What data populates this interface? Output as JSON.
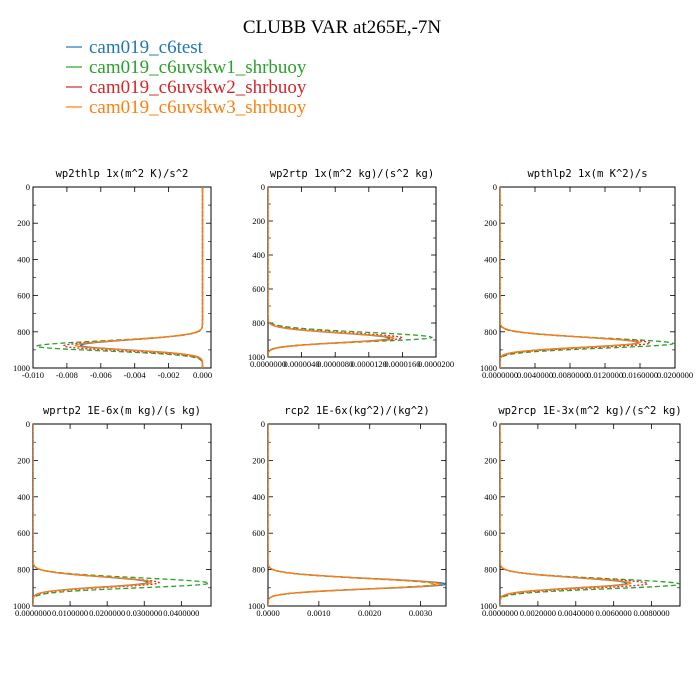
{
  "title": "CLUBB VAR at265E,-7N",
  "legend": [
    {
      "label": "cam019_c6test",
      "color": "#1f77b4",
      "dash": "solid"
    },
    {
      "label": "cam019_c6uvskw1_shrbuoy",
      "color": "#2ca02c",
      "dash": "dash"
    },
    {
      "label": "cam019_c6uvskw2_shrbuoy",
      "color": "#d62728",
      "dash": "dot"
    },
    {
      "label": "cam019_c6uvskw3_shrbuoy",
      "color": "#ff7f0e",
      "dash": "solid"
    }
  ],
  "chart_data": [
    {
      "type": "line",
      "title": "wp2thlp  1x(m^2 K)/s^2",
      "xlim": [
        -0.01,
        0.0005
      ],
      "ylim": [
        1000,
        0
      ],
      "xticks": [
        -0.01,
        -0.008,
        -0.006,
        -0.004,
        -0.002,
        0.0
      ],
      "xtick_labels": [
        "-0.010",
        "-0.008",
        "-0.006",
        "-0.004",
        "-0.002",
        "0.000"
      ],
      "yticks": [
        0,
        200,
        400,
        600,
        800,
        1000
      ],
      "ytick_labels": [
        "0",
        "200",
        "400",
        "600",
        "800",
        "1000"
      ],
      "series": [
        {
          "legend_index": 0,
          "peak_level": 875,
          "peak_value": -0.0072,
          "baseline": 0.0
        },
        {
          "legend_index": 1,
          "peak_level": 880,
          "peak_value": -0.0098,
          "baseline": 0.0
        },
        {
          "legend_index": 2,
          "peak_level": 878,
          "peak_value": -0.0082,
          "baseline": 0.0
        },
        {
          "legend_index": 3,
          "peak_level": 875,
          "peak_value": -0.0075,
          "baseline": 0.0
        }
      ]
    },
    {
      "type": "line",
      "title": "wp2rtp  1x(m^2 kg)/(s^2 kg)",
      "xlim": [
        0.0,
        2e-05
      ],
      "ylim": [
        1000,
        0
      ],
      "xticks": [
        0.0,
        4e-06,
        8e-06,
        1.2e-05,
        1.6e-05,
        2e-05
      ],
      "xtick_labels": [
        "0.0000000",
        "0.0000040",
        "0.0000080",
        "0.0000120",
        "0.0000160",
        "0.0000200"
      ],
      "yticks": [
        0,
        200,
        400,
        600,
        800,
        1000
      ],
      "ytick_labels": [
        "0",
        "200",
        "400",
        "600",
        "800",
        "1000"
      ],
      "series": [
        {
          "legend_index": 0,
          "peak_level": 890,
          "peak_value": 1.45e-05,
          "baseline": 0.0
        },
        {
          "legend_index": 1,
          "peak_level": 885,
          "peak_value": 1.95e-05,
          "baseline": 0.0
        },
        {
          "legend_index": 2,
          "peak_level": 888,
          "peak_value": 1.6e-05,
          "baseline": 0.0
        },
        {
          "legend_index": 3,
          "peak_level": 890,
          "peak_value": 1.5e-05,
          "baseline": 0.0
        }
      ]
    },
    {
      "type": "line",
      "title": "wpthlp2  1x(m K^2)/s",
      "xlim": [
        0.0,
        0.02
      ],
      "ylim": [
        1000,
        0
      ],
      "xticks": [
        0.0,
        0.004,
        0.008,
        0.012,
        0.016,
        0.02
      ],
      "xtick_labels": [
        "0.0000000",
        "0.0040000",
        "0.0080000",
        "0.0120000",
        "0.0160000",
        "0.0200000"
      ],
      "yticks": [
        0,
        200,
        400,
        600,
        800,
        1000
      ],
      "ytick_labels": [
        "0",
        "200",
        "400",
        "600",
        "800",
        "1000"
      ],
      "series": [
        {
          "legend_index": 0,
          "peak_level": 860,
          "peak_value": 0.0158,
          "baseline": 0.0
        },
        {
          "legend_index": 1,
          "peak_level": 865,
          "peak_value": 0.0198,
          "baseline": 0.0
        },
        {
          "legend_index": 2,
          "peak_level": 862,
          "peak_value": 0.0172,
          "baseline": 0.0
        },
        {
          "legend_index": 3,
          "peak_level": 860,
          "peak_value": 0.016,
          "baseline": 0.0
        }
      ]
    },
    {
      "type": "line",
      "title": "wprtp2  1E-6x(m kg)/(s kg)",
      "xlim": [
        0.0,
        0.048
      ],
      "ylim": [
        1000,
        0
      ],
      "xticks": [
        0.0,
        0.01,
        0.02,
        0.03,
        0.04
      ],
      "xtick_labels": [
        "0.0000000",
        "0.0100000",
        "0.0200000",
        "0.0300000",
        "0.0400000"
      ],
      "yticks": [
        0,
        200,
        400,
        600,
        800,
        1000
      ],
      "ytick_labels": [
        "0",
        "200",
        "400",
        "600",
        "800",
        "1000"
      ],
      "series": [
        {
          "legend_index": 0,
          "peak_level": 870,
          "peak_value": 0.031,
          "baseline": 0.0
        },
        {
          "legend_index": 1,
          "peak_level": 875,
          "peak_value": 0.0475,
          "baseline": 0.0
        },
        {
          "legend_index": 2,
          "peak_level": 872,
          "peak_value": 0.034,
          "baseline": 0.0
        },
        {
          "legend_index": 3,
          "peak_level": 870,
          "peak_value": 0.032,
          "baseline": 0.0
        }
      ]
    },
    {
      "type": "line",
      "title": "rcp2  1E-6x(kg^2)/(kg^2)",
      "xlim": [
        0.0,
        0.0035
      ],
      "ylim": [
        1000,
        0
      ],
      "xticks": [
        0.0,
        0.001,
        0.002,
        0.003
      ],
      "xtick_labels": [
        "0.0000",
        "0.0010",
        "0.0020",
        "0.0030"
      ],
      "yticks": [
        0,
        200,
        400,
        600,
        800,
        1000
      ],
      "ytick_labels": [
        "0",
        "200",
        "400",
        "600",
        "800",
        "1000"
      ],
      "series": [
        {
          "legend_index": 0,
          "peak_level": 880,
          "peak_value": 0.0035,
          "baseline": 0.0
        },
        {
          "legend_index": 1,
          "peak_level": 880,
          "peak_value": 0.0033,
          "baseline": 0.0
        },
        {
          "legend_index": 2,
          "peak_level": 880,
          "peak_value": 0.0034,
          "baseline": 0.0
        },
        {
          "legend_index": 3,
          "peak_level": 880,
          "peak_value": 0.0034,
          "baseline": 0.0
        }
      ]
    },
    {
      "type": "line",
      "title": "wp2rcp  1E-3x(m^2 kg)/(s^2 kg)",
      "xlim": [
        0.0,
        0.0095
      ],
      "ylim": [
        1000,
        0
      ],
      "xticks": [
        0.0,
        0.002,
        0.004,
        0.006,
        0.008
      ],
      "xtick_labels": [
        "0.0000000",
        "0.0020000",
        "0.0040000",
        "0.0060000",
        "0.0080000"
      ],
      "yticks": [
        0,
        200,
        400,
        600,
        800,
        1000
      ],
      "ytick_labels": [
        "0",
        "200",
        "400",
        "600",
        "800",
        "1000"
      ],
      "series": [
        {
          "legend_index": 0,
          "peak_level": 875,
          "peak_value": 0.0067,
          "baseline": 0.0
        },
        {
          "legend_index": 1,
          "peak_level": 880,
          "peak_value": 0.0095,
          "baseline": 0.0
        },
        {
          "legend_index": 2,
          "peak_level": 877,
          "peak_value": 0.0078,
          "baseline": 0.0
        },
        {
          "legend_index": 3,
          "peak_level": 875,
          "peak_value": 0.0069,
          "baseline": 0.0
        }
      ]
    }
  ]
}
